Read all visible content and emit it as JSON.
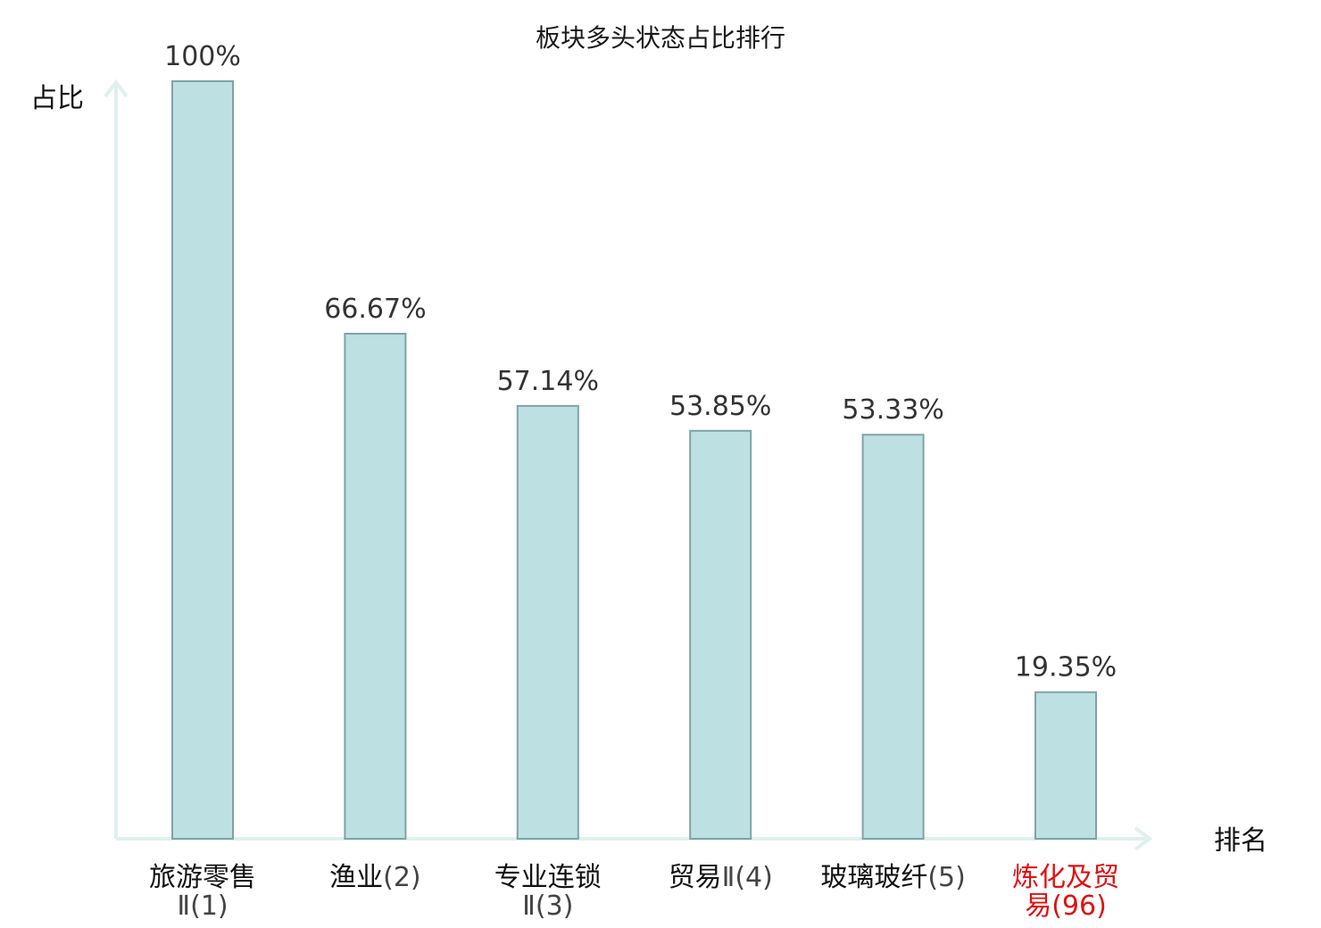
{
  "chart_data": {
    "type": "bar",
    "title": "板块多头状态占比排行",
    "ylabel": "占比",
    "xlabel": "排名",
    "ylim": [
      0,
      100
    ],
    "grid": false,
    "categories": [
      {
        "name": "旅游零售",
        "sub": "Ⅱ(1)",
        "highlight": false
      },
      {
        "name": "渔业",
        "sub": "(2)",
        "highlight": false
      },
      {
        "name": "专业连锁",
        "sub": "Ⅱ(3)",
        "highlight": false
      },
      {
        "name": "贸易",
        "sub": "Ⅱ(4)",
        "highlight": false
      },
      {
        "name": "玻璃玻纤",
        "sub": "(5)",
        "highlight": false
      },
      {
        "name": "炼化及贸",
        "sub": "易(96)",
        "highlight": true
      }
    ],
    "values": [
      100,
      66.67,
      57.14,
      53.85,
      53.33,
      19.35
    ],
    "value_labels": [
      "100%",
      "66.67%",
      "57.14%",
      "53.85%",
      "53.33%",
      "19.35%"
    ],
    "colors": {
      "bar_fill": "#bde0e3",
      "bar_stroke": "#7fa3a7",
      "axis": "#e0f0ee",
      "highlight": "#e01010"
    }
  }
}
